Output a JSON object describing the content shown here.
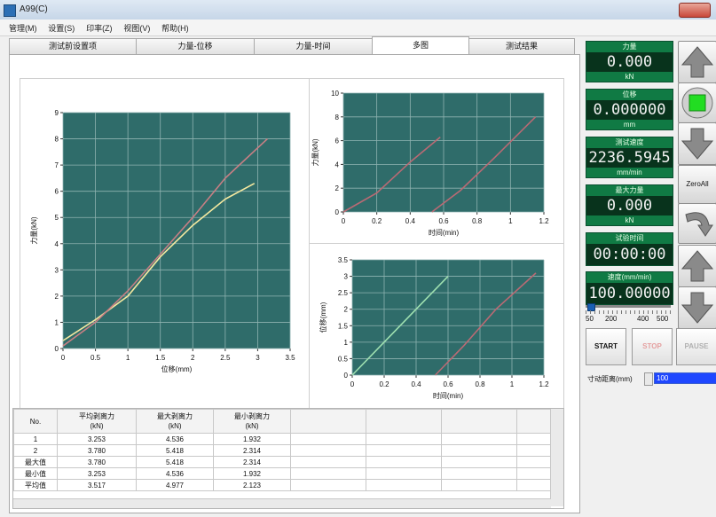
{
  "window": {
    "title": "A99(C)"
  },
  "menu": [
    "管理(M)",
    "设置(S)",
    "印率(Z)",
    "视图(V)",
    "帮助(H)"
  ],
  "tabs": [
    "测试前设置项",
    "力量-位移",
    "力量-时间",
    "多图",
    "测试结果"
  ],
  "chart_data": [
    {
      "type": "line",
      "xlabel": "位移(mm)",
      "ylabel": "力量(kN)",
      "xlim": [
        0,
        3.5
      ],
      "ylim": [
        0,
        9
      ],
      "xticks": [
        "0",
        "0.5",
        "1",
        "1.5",
        "2",
        "2.5",
        "3",
        "3.5"
      ],
      "yticks": [
        "0",
        "1",
        "2",
        "3",
        "4",
        "5",
        "6",
        "7",
        "8",
        "9"
      ],
      "grid": true,
      "series": [
        {
          "color": "#f5e9a0",
          "x": [
            0,
            0.5,
            1.0,
            1.5,
            2.0,
            2.5,
            2.95
          ],
          "y": [
            0.3,
            1.1,
            2.0,
            3.5,
            4.7,
            5.7,
            6.3
          ]
        },
        {
          "color": "#c77f84",
          "x": [
            0,
            0.5,
            1.0,
            1.5,
            2.0,
            2.5,
            3.15
          ],
          "y": [
            0.1,
            1.0,
            2.2,
            3.6,
            5.0,
            6.5,
            8.0
          ]
        }
      ]
    },
    {
      "type": "line",
      "xlabel": "时间(min)",
      "ylabel": "力量(kN)",
      "xlim": [
        0,
        1.2
      ],
      "ylim": [
        0,
        10
      ],
      "xticks": [
        "0",
        "0.2",
        "0.4",
        "0.6",
        "0.8",
        "1",
        "1.2"
      ],
      "yticks": [
        "0",
        "2",
        "4",
        "6",
        "8",
        "10"
      ],
      "grid": true,
      "series": [
        {
          "color": "#b96a74",
          "x": [
            0,
            0.2,
            0.4,
            0.58
          ],
          "y": [
            0,
            1.6,
            4.2,
            6.3
          ]
        },
        {
          "color": "#b96a74",
          "x": [
            0.53,
            0.7,
            0.9,
            1.15
          ],
          "y": [
            0,
            1.8,
            4.5,
            8.0
          ]
        }
      ]
    },
    {
      "type": "line",
      "xlabel": "时间(min)",
      "ylabel": "位移(mm)",
      "xlim": [
        0,
        1.2
      ],
      "ylim": [
        0,
        3.5
      ],
      "xticks": [
        "0",
        "0.2",
        "0.4",
        "0.6",
        "0.8",
        "1",
        "1.2"
      ],
      "yticks": [
        "0",
        "0.5",
        "1",
        "1.5",
        "2",
        "2.5",
        "3",
        "3.5"
      ],
      "grid": true,
      "series": [
        {
          "color": "#9ee0b0",
          "x": [
            0,
            0.2,
            0.4,
            0.6
          ],
          "y": [
            0,
            1.0,
            2.0,
            3.0
          ]
        },
        {
          "color": "#b96a74",
          "x": [
            0.52,
            0.7,
            0.9,
            1.15
          ],
          "y": [
            0,
            0.9,
            2.0,
            3.1
          ]
        }
      ]
    }
  ],
  "table": {
    "headers": [
      "No.",
      "平均剥离力\n(kN)",
      "最大剥离力\n(kN)",
      "最小剥离力\n(kN)"
    ],
    "rows": [
      [
        "1",
        "3.253",
        "4.536",
        "1.932"
      ],
      [
        "2",
        "3.780",
        "5.418",
        "2.314"
      ],
      [
        "最大值",
        "3.780",
        "5.418",
        "2.314"
      ],
      [
        "最小值",
        "3.253",
        "4.536",
        "1.932"
      ],
      [
        "平均值",
        "3.517",
        "4.977",
        "2.123"
      ]
    ]
  },
  "readouts": [
    {
      "label": "力量",
      "value": "0.000",
      "unit": "kN"
    },
    {
      "label": "位移",
      "value": "0.000000",
      "unit": "mm"
    },
    {
      "label": "测试速度",
      "value": "2236.5945",
      "unit": "mm/min"
    },
    {
      "label": "最大力量",
      "value": "0.000",
      "unit": "kN"
    },
    {
      "label": "试验时间",
      "value": "00:00:00",
      "unit": ""
    },
    {
      "label": "速度(mm/min)",
      "value": "100.00000",
      "unit": ""
    }
  ],
  "speed_scale": [
    "50",
    "200",
    "400",
    "500"
  ],
  "side_buttons": {
    "zero_all": "ZeroAll"
  },
  "controls": {
    "start": "START",
    "stop": "STOP",
    "pause": "PAUSE"
  },
  "jog": {
    "label": "寸动距离(mm)",
    "value": "100"
  },
  "colors": {
    "plot_bg": "#2f6c6a",
    "readout_bg": "#107a44",
    "led_green": "#22dd22"
  }
}
